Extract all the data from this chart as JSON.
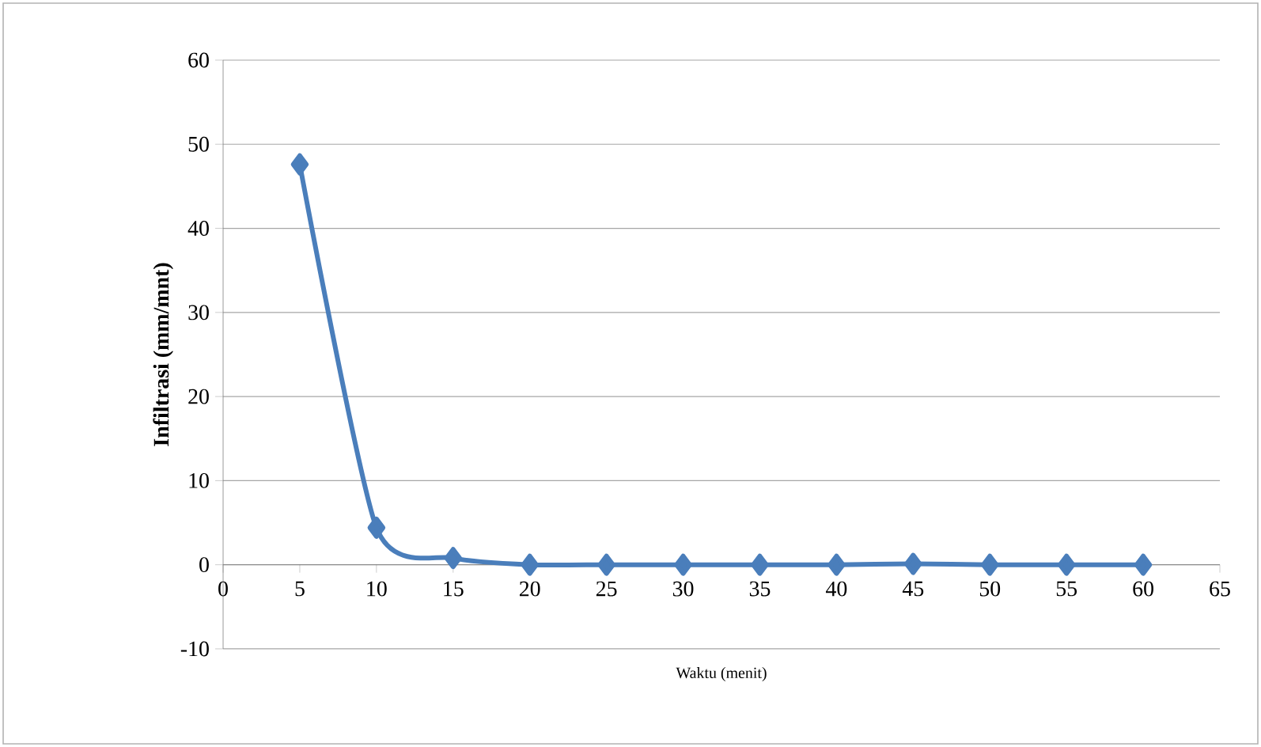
{
  "chart_data": {
    "type": "line",
    "xlabel": "Waktu (menit)",
    "ylabel": "Infiltrasi (mm/mnt)",
    "x": [
      5,
      10,
      15,
      20,
      25,
      30,
      35,
      40,
      45,
      50,
      55,
      60
    ],
    "series": [
      {
        "color": "#4a7ebb",
        "values": [
          47.6,
          4.4,
          0.8,
          0,
          0,
          0,
          0,
          0,
          0.1,
          0,
          0,
          0
        ]
      }
    ],
    "xlim": [
      0,
      65
    ],
    "ylim": [
      -10,
      60
    ],
    "xticks": [
      0,
      5,
      10,
      15,
      20,
      25,
      30,
      35,
      40,
      45,
      50,
      55,
      60,
      65
    ],
    "yticks": [
      -10,
      0,
      10,
      20,
      30,
      40,
      50,
      60
    ],
    "grid": "y",
    "marker": "diamond",
    "line_style": "solid"
  }
}
